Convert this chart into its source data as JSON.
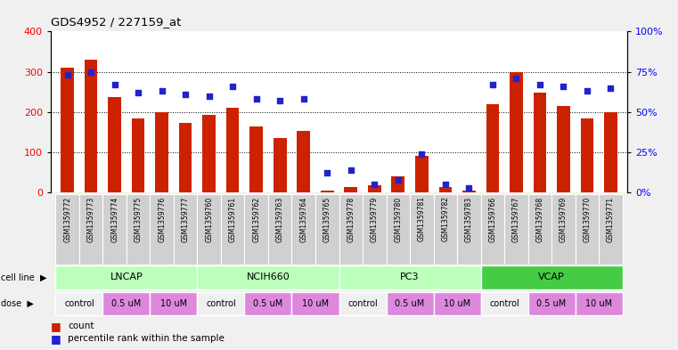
{
  "title": "GDS4952 / 227159_at",
  "samples": [
    "GSM1359772",
    "GSM1359773",
    "GSM1359774",
    "GSM1359775",
    "GSM1359776",
    "GSM1359777",
    "GSM1359760",
    "GSM1359761",
    "GSM1359762",
    "GSM1359763",
    "GSM1359764",
    "GSM1359765",
    "GSM1359778",
    "GSM1359779",
    "GSM1359780",
    "GSM1359781",
    "GSM1359782",
    "GSM1359783",
    "GSM1359766",
    "GSM1359767",
    "GSM1359768",
    "GSM1359769",
    "GSM1359770",
    "GSM1359771"
  ],
  "counts": [
    310,
    330,
    238,
    183,
    200,
    172,
    192,
    210,
    163,
    136,
    152,
    5,
    13,
    18,
    40,
    90,
    14,
    5,
    220,
    298,
    248,
    215,
    183,
    200
  ],
  "percentiles": [
    73,
    75,
    67,
    62,
    63,
    61,
    60,
    66,
    58,
    57,
    58,
    12,
    14,
    5,
    8,
    24,
    5,
    3,
    67,
    71,
    67,
    66,
    63,
    65
  ],
  "cell_lines": [
    {
      "name": "LNCAP",
      "start": 0,
      "end": 6,
      "light": true
    },
    {
      "name": "NCIH660",
      "start": 6,
      "end": 12,
      "light": true
    },
    {
      "name": "PC3",
      "start": 12,
      "end": 18,
      "light": true
    },
    {
      "name": "VCAP",
      "start": 18,
      "end": 24,
      "light": false
    }
  ],
  "dose_groups": [
    {
      "label": "control",
      "start": 0,
      "end": 2,
      "pink": false
    },
    {
      "label": "0.5 uM",
      "start": 2,
      "end": 4,
      "pink": true
    },
    {
      "label": "10 uM",
      "start": 4,
      "end": 6,
      "pink": true
    },
    {
      "label": "control",
      "start": 6,
      "end": 8,
      "pink": false
    },
    {
      "label": "0.5 uM",
      "start": 8,
      "end": 10,
      "pink": true
    },
    {
      "label": "10 uM",
      "start": 10,
      "end": 12,
      "pink": true
    },
    {
      "label": "control",
      "start": 12,
      "end": 14,
      "pink": false
    },
    {
      "label": "0.5 uM",
      "start": 14,
      "end": 16,
      "pink": true
    },
    {
      "label": "10 uM",
      "start": 16,
      "end": 18,
      "pink": true
    },
    {
      "label": "control",
      "start": 18,
      "end": 20,
      "pink": false
    },
    {
      "label": "0.5 uM",
      "start": 20,
      "end": 22,
      "pink": true
    },
    {
      "label": "10 uM",
      "start": 22,
      "end": 24,
      "pink": true
    }
  ],
  "bar_color": "#CC2200",
  "dot_color": "#2222CC",
  "ylim_left": [
    0,
    400
  ],
  "ylim_right": [
    0,
    100
  ],
  "yticks_left": [
    0,
    100,
    200,
    300,
    400
  ],
  "yticks_right": [
    0,
    25,
    50,
    75,
    100
  ],
  "cell_line_light_color": "#BBFFBB",
  "cell_line_dark_color": "#44CC44",
  "dose_color_pink": "#DD88DD",
  "dose_color_white": "#F0F0F0",
  "sample_bg_color": "#D0D0D0",
  "fig_bg_color": "#F0F0F0",
  "plot_bg_color": "#FFFFFF"
}
